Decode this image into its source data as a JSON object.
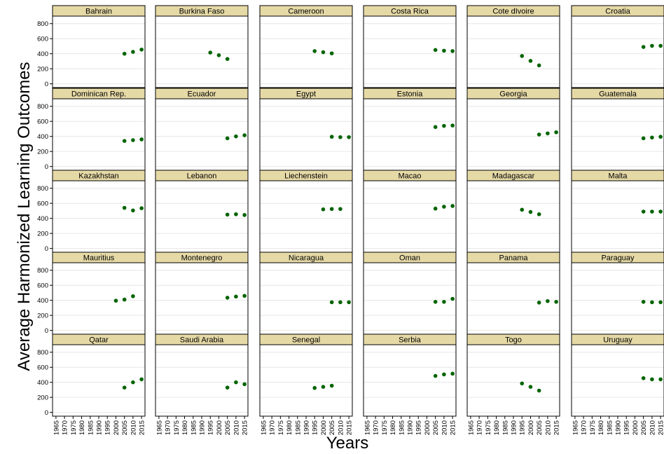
{
  "chart_data": {
    "type": "scatter",
    "ylabel": "Average Harmonized Learning Outcomes",
    "xlabel": "Years",
    "point_color": "#006400",
    "strip_color": "#E5D9A6",
    "grid_color": "#E6E6E6",
    "ylim": [
      -50,
      900
    ],
    "yticks": [
      0,
      200,
      400,
      600,
      800
    ],
    "xlim": [
      1963,
      2017
    ],
    "xticks": [
      1965,
      1970,
      1975,
      1980,
      1985,
      1990,
      1995,
      2000,
      2005,
      2010,
      2015
    ],
    "ncols": 6,
    "nrows": 5,
    "panels": [
      {
        "name": "Bahrain",
        "points": [
          [
            2005,
            400
          ],
          [
            2010,
            425
          ],
          [
            2015,
            455
          ]
        ]
      },
      {
        "name": "Burkina Faso",
        "points": [
          [
            1995,
            415
          ],
          [
            2000,
            380
          ],
          [
            2005,
            330
          ]
        ]
      },
      {
        "name": "Cameroon",
        "points": [
          [
            1995,
            435
          ],
          [
            2000,
            420
          ],
          [
            2005,
            405
          ]
        ]
      },
      {
        "name": "Costa Rica",
        "points": [
          [
            2005,
            450
          ],
          [
            2010,
            440
          ],
          [
            2015,
            435
          ]
        ]
      },
      {
        "name": "Cote dIvoire",
        "points": [
          [
            1995,
            370
          ],
          [
            2000,
            305
          ],
          [
            2005,
            245
          ]
        ]
      },
      {
        "name": "Croatia",
        "points": [
          [
            2005,
            490
          ],
          [
            2010,
            505
          ],
          [
            2015,
            505
          ]
        ]
      },
      {
        "name": "Dominican Rep.",
        "points": [
          [
            2005,
            340
          ],
          [
            2010,
            350
          ],
          [
            2015,
            360
          ]
        ]
      },
      {
        "name": "Ecuador",
        "points": [
          [
            2005,
            375
          ],
          [
            2010,
            400
          ],
          [
            2015,
            415
          ]
        ]
      },
      {
        "name": "Egypt",
        "points": [
          [
            2005,
            395
          ],
          [
            2010,
            390
          ],
          [
            2015,
            390
          ]
        ]
      },
      {
        "name": "Estonia",
        "points": [
          [
            2005,
            525
          ],
          [
            2010,
            540
          ],
          [
            2015,
            545
          ]
        ]
      },
      {
        "name": "Georgia",
        "points": [
          [
            2005,
            425
          ],
          [
            2010,
            440
          ],
          [
            2015,
            455
          ]
        ]
      },
      {
        "name": "Guatemala",
        "points": [
          [
            2005,
            375
          ],
          [
            2010,
            385
          ],
          [
            2015,
            395
          ]
        ]
      },
      {
        "name": "Kazakhstan",
        "points": [
          [
            2005,
            540
          ],
          [
            2010,
            505
          ],
          [
            2015,
            535
          ]
        ]
      },
      {
        "name": "Lebanon",
        "points": [
          [
            2005,
            450
          ],
          [
            2010,
            455
          ],
          [
            2015,
            445
          ]
        ]
      },
      {
        "name": "Liechenstein",
        "points": [
          [
            2000,
            520
          ],
          [
            2005,
            525
          ],
          [
            2010,
            525
          ]
        ]
      },
      {
        "name": "Macao",
        "points": [
          [
            2005,
            530
          ],
          [
            2010,
            555
          ],
          [
            2015,
            565
          ]
        ]
      },
      {
        "name": "Madagascar",
        "points": [
          [
            1995,
            515
          ],
          [
            2000,
            485
          ],
          [
            2005,
            455
          ]
        ]
      },
      {
        "name": "Malta",
        "points": [
          [
            2005,
            490
          ],
          [
            2010,
            490
          ],
          [
            2015,
            490
          ]
        ]
      },
      {
        "name": "Mauritius",
        "points": [
          [
            2000,
            395
          ],
          [
            2005,
            410
          ],
          [
            2010,
            455
          ]
        ]
      },
      {
        "name": "Montenegro",
        "points": [
          [
            2005,
            435
          ],
          [
            2010,
            450
          ],
          [
            2015,
            460
          ]
        ]
      },
      {
        "name": "Nicaragua",
        "points": [
          [
            2005,
            375
          ],
          [
            2010,
            375
          ],
          [
            2015,
            375
          ]
        ]
      },
      {
        "name": "Oman",
        "points": [
          [
            2005,
            380
          ],
          [
            2010,
            380
          ],
          [
            2015,
            420
          ]
        ]
      },
      {
        "name": "Panama",
        "points": [
          [
            2005,
            370
          ],
          [
            2010,
            390
          ],
          [
            2015,
            380
          ]
        ]
      },
      {
        "name": "Paraguay",
        "points": [
          [
            2005,
            380
          ],
          [
            2010,
            375
          ],
          [
            2015,
            375
          ]
        ]
      },
      {
        "name": "Qatar",
        "points": [
          [
            2005,
            330
          ],
          [
            2010,
            400
          ],
          [
            2015,
            440
          ]
        ]
      },
      {
        "name": "Saudi Arabia",
        "points": [
          [
            2005,
            330
          ],
          [
            2010,
            400
          ],
          [
            2015,
            375
          ]
        ]
      },
      {
        "name": "Senegal",
        "points": [
          [
            1995,
            325
          ],
          [
            2000,
            340
          ],
          [
            2005,
            355
          ]
        ]
      },
      {
        "name": "Serbia",
        "points": [
          [
            2005,
            485
          ],
          [
            2010,
            505
          ],
          [
            2015,
            515
          ]
        ]
      },
      {
        "name": "Togo",
        "points": [
          [
            1995,
            385
          ],
          [
            2000,
            340
          ],
          [
            2005,
            290
          ]
        ]
      },
      {
        "name": "Uruguay",
        "points": [
          [
            2005,
            455
          ],
          [
            2010,
            440
          ],
          [
            2015,
            440
          ]
        ]
      }
    ]
  }
}
